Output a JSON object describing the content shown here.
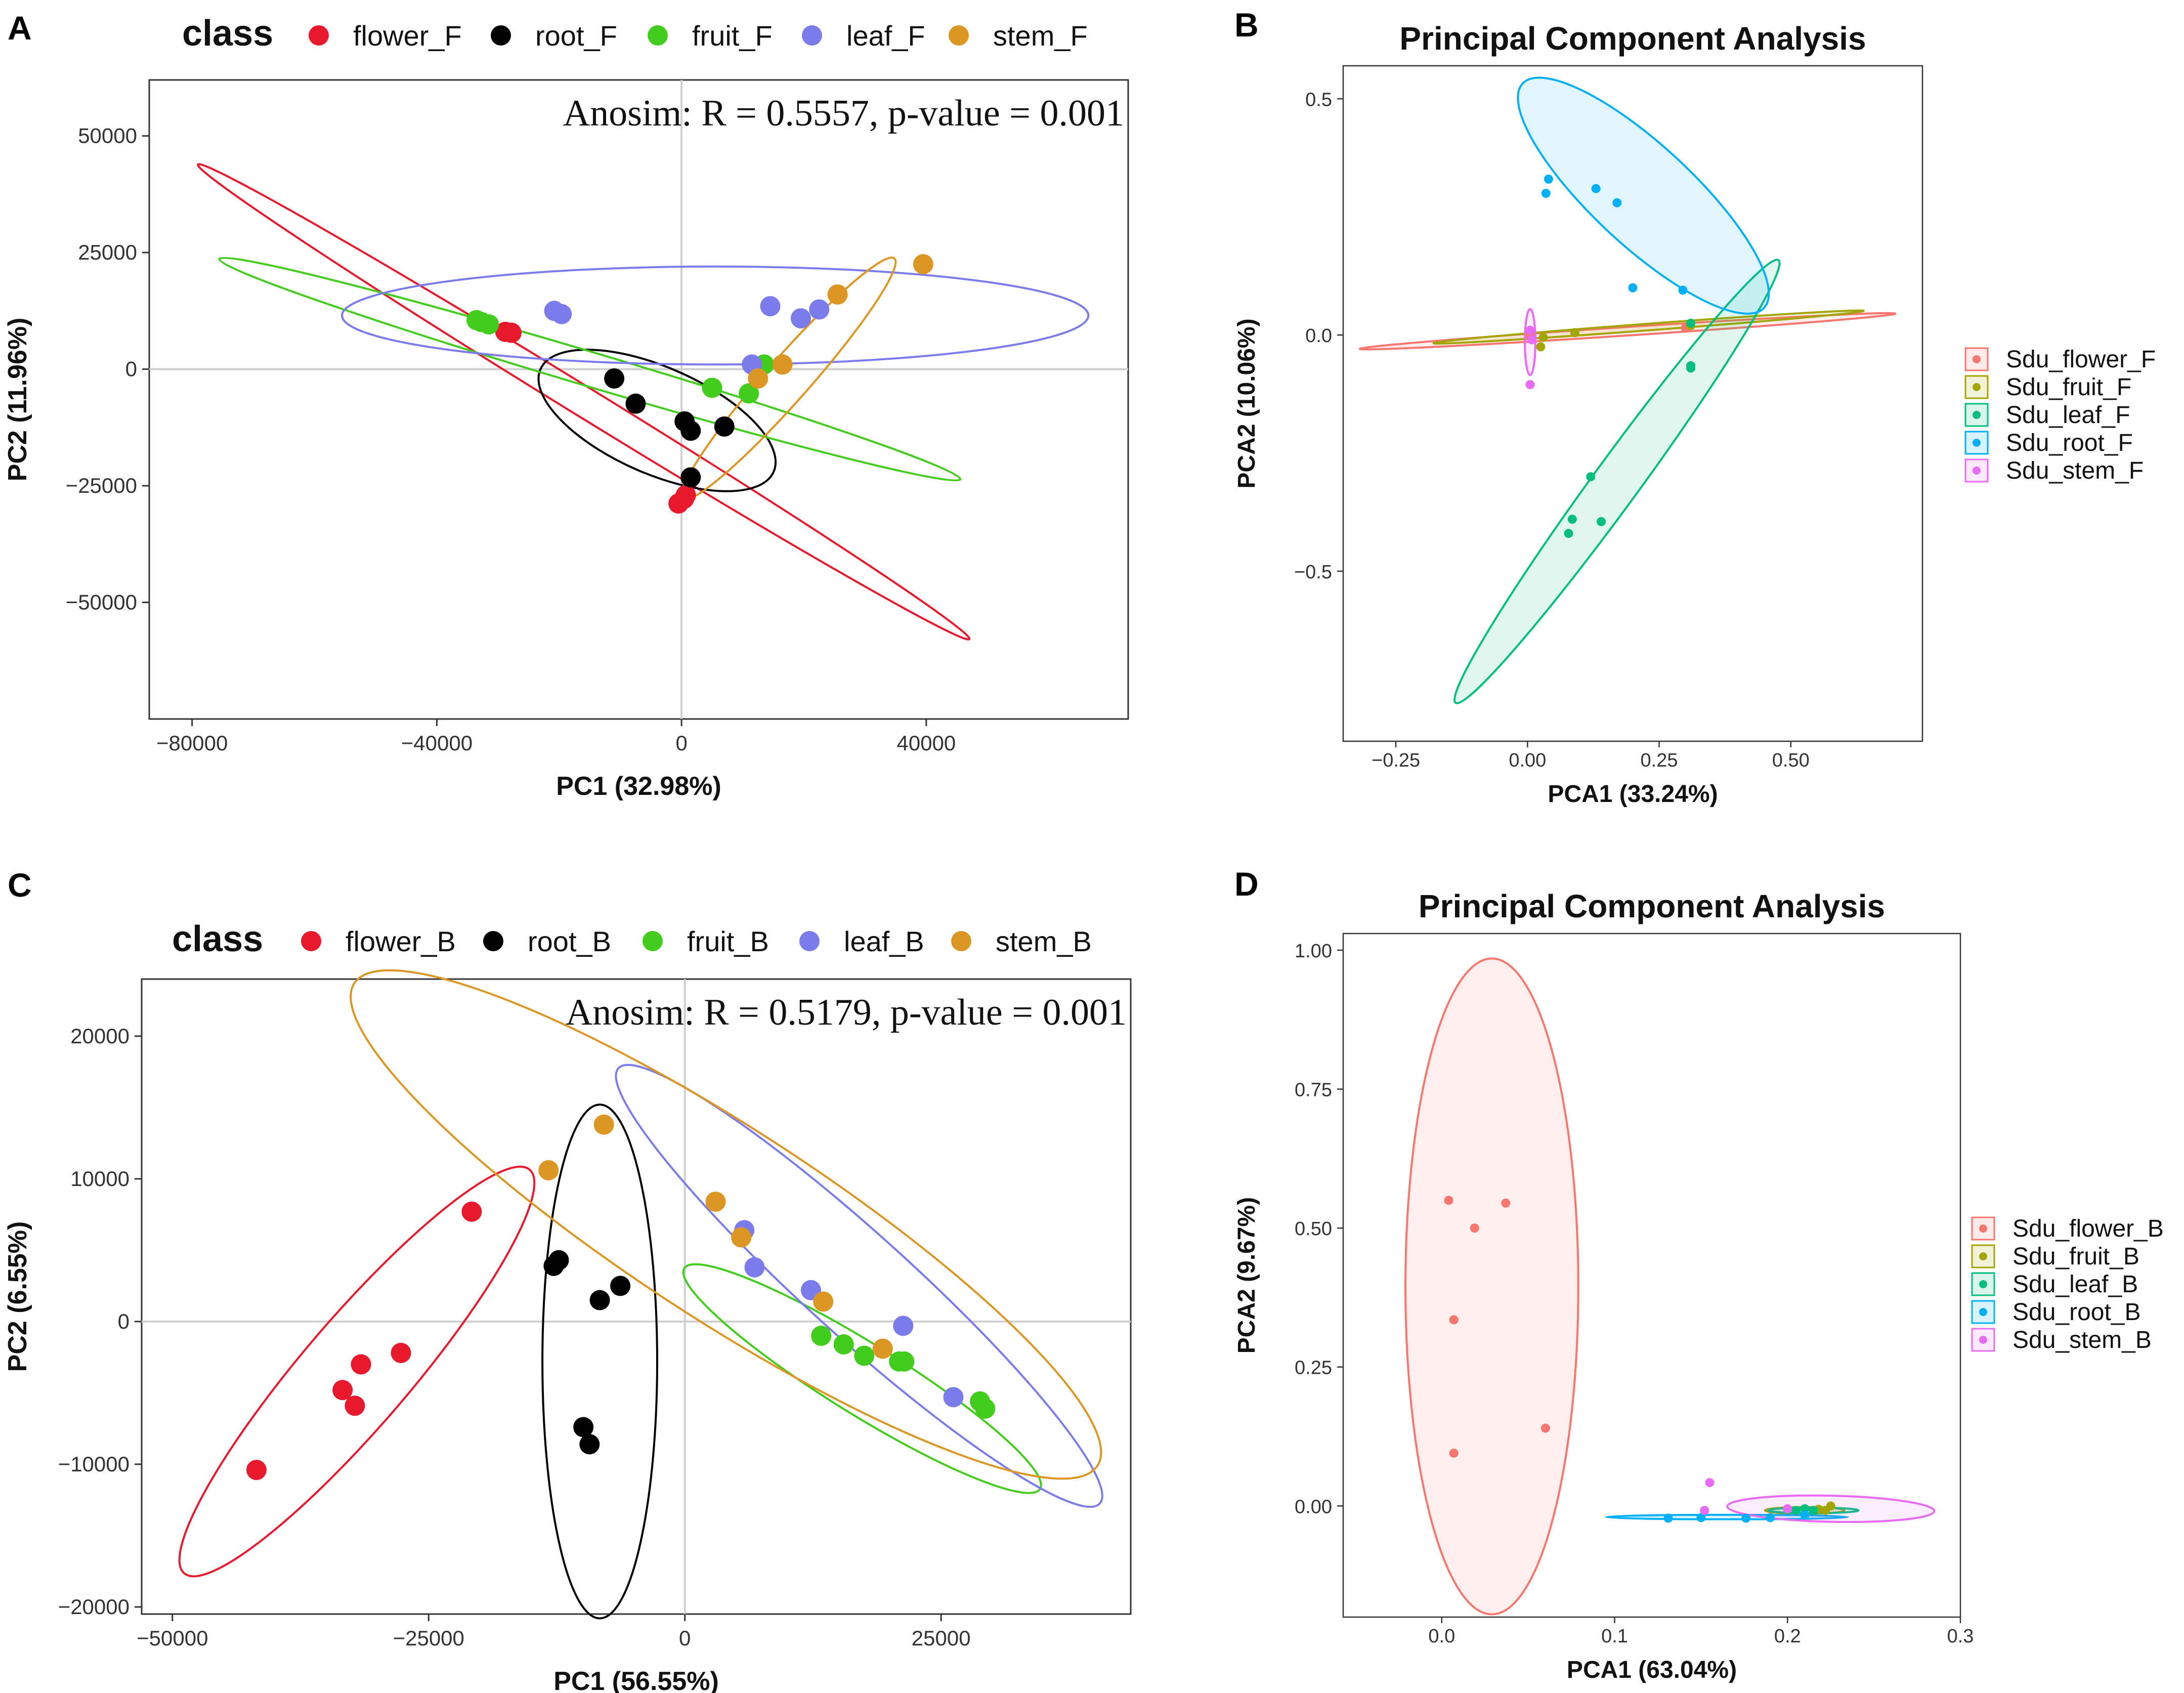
{
  "chart_data": [
    {
      "panel_label": "A",
      "type": "scatter",
      "title": "",
      "xlabel": "PC1 (32.98%)",
      "ylabel": "PC2 (11.96%)",
      "xlim": [
        -87000,
        73000
      ],
      "ylim": [
        -75000,
        62000
      ],
      "xticks": [
        -80000,
        -40000,
        0,
        40000
      ],
      "yticks": [
        50000,
        25000,
        0,
        -25000,
        -50000
      ],
      "legend_title": "class",
      "legend_position": "top",
      "annotation": "Anosim: R = 0.5557, p-value = 0.001",
      "series": [
        {
          "name": "flower_F",
          "color": "#e8192c",
          "points": [
            [
              -28800,
              8000
            ],
            [
              -27800,
              7800
            ],
            [
              -500,
              -28800
            ],
            [
              400,
              -27800
            ],
            [
              700,
              -27000
            ]
          ],
          "ellipse": {
            "cx": -16000,
            "cy": -7000,
            "rx": 81000,
            "ry": 2800,
            "angle": -38.9
          }
        },
        {
          "name": "root_F",
          "color": "#000000",
          "points": [
            [
              -11000,
              -2000
            ],
            [
              -7500,
              -7400
            ],
            [
              500,
              -11200
            ],
            [
              1500,
              -13200
            ],
            [
              7000,
              -12300
            ],
            [
              1500,
              -23200
            ]
          ],
          "ellipse": {
            "cx": -4000,
            "cy": -11000,
            "rx": 22000,
            "ry": 10500,
            "angle": -30
          }
        },
        {
          "name": "fruit_F",
          "color": "#42cc1c",
          "points": [
            [
              -33500,
              10500
            ],
            [
              -32700,
              10100
            ],
            [
              -31500,
              9600
            ],
            [
              5000,
              -4000
            ],
            [
              11000,
              -5200
            ],
            [
              13500,
              1000
            ]
          ],
          "ellipse": {
            "cx": -15000,
            "cy": 0,
            "rx": 65000,
            "ry": 3500,
            "angle": -21.3
          }
        },
        {
          "name": "leaf_F",
          "color": "#7b7bec",
          "points": [
            [
              -20800,
              12500
            ],
            [
              -19600,
              11800
            ],
            [
              11500,
              1000
            ],
            [
              14500,
              13500
            ],
            [
              19500,
              10900
            ],
            [
              22500,
              12800
            ]
          ],
          "ellipse": {
            "cx": 5500,
            "cy": 11500,
            "rx": 61000,
            "ry": 10500,
            "angle": 0
          }
        },
        {
          "name": "stem_F",
          "color": "#dc9624",
          "points": [
            [
              12500,
              -2000
            ],
            [
              16500,
              1000
            ],
            [
              25500,
              16000
            ],
            [
              39500,
              22500
            ]
          ],
          "ellipse": {
            "cx": 17500,
            "cy": -2000,
            "rx": 31000,
            "ry": 3800,
            "angle": 56.1
          }
        }
      ]
    },
    {
      "panel_label": "B",
      "type": "scatter",
      "title": "Principal Component Analysis",
      "xlabel": "PCA1 (33.24%)",
      "ylabel": "PCA2 (10.06%)",
      "xlim": [
        -0.35,
        0.75
      ],
      "ylim": [
        -0.86,
        0.57
      ],
      "xticks": [
        -0.25,
        0.0,
        0.25,
        0.5
      ],
      "xtick_labels": [
        "−0.25",
        "0.00",
        "0.25",
        "0.50"
      ],
      "yticks": [
        0.5,
        0.0,
        -0.5
      ],
      "ytick_labels": [
        "0.5",
        "0.0",
        "−0.5"
      ],
      "legend_position": "right",
      "series": [
        {
          "name": "Sdu_flower_F",
          "color": "#f8766d",
          "points": [
            [
              0.3,
              0.015
            ],
            [
              0.005,
              -0.002
            ]
          ],
          "ellipse": {
            "cx": 0.19,
            "cy": 0.008,
            "rx": 0.51,
            "ry": 0.009,
            "angle": 4.2
          }
        },
        {
          "name": "Sdu_fruit_F",
          "color": "#a3a500",
          "points": [
            [
              0.03,
              -0.005
            ],
            [
              0.09,
              0.005
            ],
            [
              0.31,
              0.02
            ],
            [
              0.025,
              -0.025
            ]
          ],
          "ellipse": {
            "cx": 0.23,
            "cy": 0.017,
            "rx": 0.41,
            "ry": 0.007,
            "angle": 4.8
          }
        },
        {
          "name": "Sdu_leaf_F",
          "color": "#00bf7d",
          "points": [
            [
              0.12,
              -0.3
            ],
            [
              0.14,
              -0.395
            ],
            [
              0.085,
              -0.39
            ],
            [
              0.078,
              -0.42
            ],
            [
              0.31,
              -0.065
            ],
            [
              0.31,
              -0.07
            ],
            [
              0.31,
              0.025
            ]
          ],
          "ellipse": {
            "cx": 0.17,
            "cy": -0.31,
            "rx": 0.56,
            "ry": 0.045,
            "angle": 56.8
          }
        },
        {
          "name": "Sdu_root_F",
          "color": "#00b0f6",
          "points": [
            [
              0.04,
              0.33
            ],
            [
              0.035,
              0.3
            ],
            [
              0.13,
              0.31
            ],
            [
              0.17,
              0.28
            ],
            [
              0.2,
              0.1
            ],
            [
              0.295,
              0.095
            ]
          ],
          "ellipse": {
            "cx": 0.22,
            "cy": 0.295,
            "rx": 0.33,
            "ry": 0.1,
            "angle": -46
          }
        },
        {
          "name": "Sdu_stem_F",
          "color": "#e76bf3",
          "points": [
            [
              0.005,
              0.01
            ],
            [
              0.008,
              -0.01
            ],
            [
              0.005,
              -0.105
            ]
          ],
          "ellipse": {
            "cx": 0.005,
            "cy": -0.015,
            "rx": 0.01,
            "ry": 0.07,
            "angle": 0
          }
        }
      ]
    },
    {
      "panel_label": "C",
      "type": "scatter",
      "title": "",
      "xlabel": "PC1 (56.55%)",
      "ylabel": "PC2 (6.55%)",
      "xlim": [
        -53000,
        43500
      ],
      "ylim": [
        -20500,
        24000
      ],
      "xticks": [
        -50000,
        -25000,
        0,
        25000
      ],
      "yticks": [
        20000,
        10000,
        0,
        -10000,
        -20000
      ],
      "legend_title": "class",
      "legend_position": "top",
      "annotation": "Anosim: R = 0.5179, p-value = 0.001",
      "series": [
        {
          "name": "flower_B",
          "color": "#e8192c",
          "points": [
            [
              -20800,
              7700
            ],
            [
              -27700,
              -2200
            ],
            [
              -31600,
              -3000
            ],
            [
              -33400,
              -4800
            ],
            [
              -32200,
              -5900
            ],
            [
              -41800,
              -10400
            ]
          ],
          "ellipse": {
            "cx": -32000,
            "cy": -3500,
            "rx": 22000,
            "ry": 4200,
            "angle": 40
          }
        },
        {
          "name": "root_B",
          "color": "#000000",
          "points": [
            [
              -12800,
              3900
            ],
            [
              -12300,
              4300
            ],
            [
              -8300,
              1500
            ],
            [
              -6300,
              2500
            ],
            [
              -9900,
              -7400
            ],
            [
              -9300,
              -8600
            ]
          ],
          "ellipse": {
            "cx": -8300,
            "cy": -2800,
            "rx": 5600,
            "ry": 18000,
            "angle": 0
          }
        },
        {
          "name": "fruit_B",
          "color": "#42cc1c",
          "points": [
            [
              13300,
              -1000
            ],
            [
              15500,
              -1600
            ],
            [
              17500,
              -2400
            ],
            [
              20900,
              -2800
            ],
            [
              21400,
              -2800
            ],
            [
              28800,
              -5600
            ],
            [
              29300,
              -6100
            ]
          ],
          "ellipse": {
            "cx": 17300,
            "cy": -4000,
            "rx": 19000,
            "ry": 2600,
            "angle": -24
          }
        },
        {
          "name": "leaf_B",
          "color": "#7b7bec",
          "points": [
            [
              5800,
              6400
            ],
            [
              6800,
              3800
            ],
            [
              12300,
              2200
            ],
            [
              21300,
              -300
            ],
            [
              26200,
              -5300
            ]
          ],
          "ellipse": {
            "cx": 17000,
            "cy": 2500,
            "rx": 28000,
            "ry": 3900,
            "angle": -33
          }
        },
        {
          "name": "stem_B",
          "color": "#dc9624",
          "points": [
            [
              -7900,
              13800
            ],
            [
              -13300,
              10600
            ],
            [
              3000,
              8400
            ],
            [
              5500,
              5900
            ],
            [
              13500,
              1400
            ],
            [
              19300,
              -1900
            ]
          ],
          "ellipse": {
            "cx": 4000,
            "cy": 6800,
            "rx": 40000,
            "ry": 7000,
            "angle": -25
          }
        }
      ]
    },
    {
      "panel_label": "D",
      "type": "scatter",
      "title": "Principal Component Analysis",
      "xlabel": "PCA1 (63.04%)",
      "ylabel": "PCA2 (9.67%)",
      "xlim": [
        -0.057,
        0.3
      ],
      "ylim": [
        -0.2,
        1.03
      ],
      "xticks": [
        0.0,
        0.1,
        0.2,
        0.3
      ],
      "xtick_labels": [
        "0.0",
        "0.1",
        "0.2",
        "0.3"
      ],
      "yticks": [
        1.0,
        0.75,
        0.5,
        0.25,
        0.0
      ],
      "ytick_labels": [
        "1.00",
        "0.75",
        "0.50",
        "0.25",
        "0.00"
      ],
      "legend_position": "right",
      "series": [
        {
          "name": "Sdu_flower_B",
          "color": "#f8766d",
          "points": [
            [
              0.004,
              0.55
            ],
            [
              0.037,
              0.545
            ],
            [
              0.019,
              0.5
            ],
            [
              0.007,
              0.335
            ],
            [
              0.06,
              0.14
            ],
            [
              0.007,
              0.095
            ]
          ],
          "ellipse": {
            "cx": 0.029,
            "cy": 0.395,
            "rx": 0.05,
            "ry": 0.59,
            "angle": 0
          }
        },
        {
          "name": "Sdu_fruit_B",
          "color": "#a3a500",
          "points": [
            [
              0.225,
              0.0
            ],
            [
              0.222,
              -0.008
            ],
            [
              0.218,
              -0.006
            ]
          ],
          "ellipse": {
            "cx": 0.21,
            "cy": -0.008,
            "rx": 0.023,
            "ry": 0.006,
            "angle": 0
          }
        },
        {
          "name": "Sdu_leaf_B",
          "color": "#00bf7d",
          "points": [
            [
              0.21,
              -0.005
            ],
            [
              0.215,
              -0.008
            ],
            [
              0.205,
              -0.008
            ]
          ],
          "ellipse": {
            "cx": 0.215,
            "cy": -0.008,
            "rx": 0.026,
            "ry": 0.005,
            "angle": 0
          }
        },
        {
          "name": "Sdu_root_B",
          "color": "#00b0f6",
          "points": [
            [
              0.131,
              -0.022
            ],
            [
              0.15,
              -0.021
            ],
            [
              0.176,
              -0.022
            ],
            [
              0.19,
              -0.021
            ],
            [
              0.21,
              -0.016
            ]
          ],
          "ellipse": {
            "cx": 0.165,
            "cy": -0.02,
            "rx": 0.07,
            "ry": 0.004,
            "angle": 0
          }
        },
        {
          "name": "Sdu_stem_B",
          "color": "#e76bf3",
          "points": [
            [
              0.155,
              0.042
            ],
            [
              0.152,
              -0.008
            ],
            [
              0.2,
              -0.005
            ]
          ],
          "ellipse": {
            "cx": 0.225,
            "cy": -0.005,
            "rx": 0.06,
            "ry": 0.023,
            "angle": -4
          }
        }
      ]
    }
  ]
}
